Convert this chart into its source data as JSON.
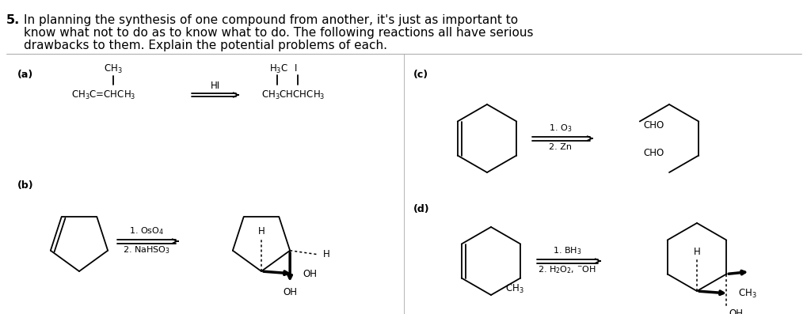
{
  "bg_color": "#ffffff",
  "text_color": "#000000",
  "title_number": "5.",
  "title_line1": "In planning the synthesis of one compound from another, it's just as important to",
  "title_line2": "know what not to do as to know what to do. The following reactions all have serious",
  "title_line3": "drawbacks to them. Explain the potential problems of each.",
  "label_a": "(a)",
  "label_b": "(b)",
  "label_c": "(c)",
  "label_d": "(d)"
}
